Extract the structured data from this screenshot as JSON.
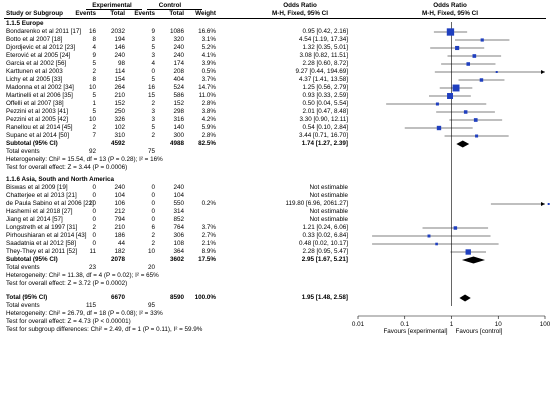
{
  "header": {
    "group_experimental": "Experimental",
    "group_control": "Control",
    "col_study": "Study or Subgroup",
    "col_events_exp": "Events",
    "col_total_exp": "Total",
    "col_events_ctl": "Events",
    "col_total_ctl": "Total",
    "col_weight": "Weight",
    "col_or_title": "Odds Ratio",
    "col_or_method": "M-H, Fixed, 95% CI",
    "plot_title": "Odds Ratio",
    "plot_method": "M-H, Fixed, 95% CI"
  },
  "sections": [
    {
      "title": "1.1.5 Europe",
      "rows": [
        {
          "study": "Bondarenko et al 2011 [17]",
          "e_ev": "16",
          "e_tot": "2032",
          "c_ev": "9",
          "c_tot": "1086",
          "weight": "16.6%",
          "or": "0.95 [0.42, 2.16]"
        },
        {
          "study": "Botto et al 2007 [18]",
          "e_ev": "8",
          "e_tot": "194",
          "c_ev": "3",
          "c_tot": "320",
          "weight": "3.1%",
          "or": "4.54 [1.19, 17.34]"
        },
        {
          "study": "Djordjevic et al 2012 [23]",
          "e_ev": "4",
          "e_tot": "146",
          "c_ev": "5",
          "c_tot": "240",
          "weight": "5.2%",
          "or": "1.32 [0.35, 5.01]"
        },
        {
          "study": "Eterović et al 2005 [24]",
          "e_ev": "9",
          "e_tot": "240",
          "c_ev": "3",
          "c_tot": "240",
          "weight": "4.1%",
          "or": "3.08 [0.82, 11.51]"
        },
        {
          "study": "Garcia et al 2002 [56]",
          "e_ev": "5",
          "e_tot": "98",
          "c_ev": "4",
          "c_tot": "174",
          "weight": "3.9%",
          "or": "2.28 [0.60, 8.72]"
        },
        {
          "study": "Karttunen et al 2003",
          "e_ev": "2",
          "e_tot": "114",
          "c_ev": "0",
          "c_tot": "208",
          "weight": "0.5%",
          "or": "9.27 [0.44, 194.69]"
        },
        {
          "study": "Lichy et al 2005 [33]",
          "e_ev": "8",
          "e_tot": "154",
          "c_ev": "5",
          "c_tot": "404",
          "weight": "3.7%",
          "or": "4.37 [1.41, 13.58]"
        },
        {
          "study": "Madonna et al 2002 [34]",
          "e_ev": "10",
          "e_tot": "264",
          "c_ev": "16",
          "c_tot": "524",
          "weight": "14.7%",
          "or": "1.25 [0.56, 2.79]"
        },
        {
          "study": "Martinelli et al 2006 [35]",
          "e_ev": "5",
          "e_tot": "210",
          "c_ev": "15",
          "c_tot": "586",
          "weight": "11.0%",
          "or": "0.93 [0.33, 2.59]"
        },
        {
          "study": "Offelli et al 2007 [38]",
          "e_ev": "1",
          "e_tot": "152",
          "c_ev": "2",
          "c_tot": "152",
          "weight": "2.8%",
          "or": "0.50 [0.04, 5.54]"
        },
        {
          "study": "Pezzini et al 2003 [41]",
          "e_ev": "5",
          "e_tot": "250",
          "c_ev": "3",
          "c_tot": "298",
          "weight": "3.8%",
          "or": "2.01 [0.47, 8.48]"
        },
        {
          "study": "Pezzini et al 2005 [42]",
          "e_ev": "10",
          "e_tot": "326",
          "c_ev": "3",
          "c_tot": "316",
          "weight": "4.2%",
          "or": "3.30 [0.90, 12.11]"
        },
        {
          "study": "Ranellou et al 2014 [45]",
          "e_ev": "2",
          "e_tot": "102",
          "c_ev": "5",
          "c_tot": "140",
          "weight": "5.9%",
          "or": "0.54 [0.10, 2.84]"
        },
        {
          "study": "Supanc et al 2014 [50]",
          "e_ev": "7",
          "e_tot": "310",
          "c_ev": "2",
          "c_tot": "300",
          "weight": "2.8%",
          "or": "3.44 [0.71, 16.70]"
        }
      ],
      "subtotal": {
        "label": "Subtotal (95% CI)",
        "e_tot": "4592",
        "c_tot": "4988",
        "weight": "82.5%",
        "or": "1.74 [1.27, 2.39]"
      },
      "total_events": {
        "label": "Total events",
        "e": "92",
        "c": "75"
      },
      "heterogeneity": "Heterogeneity: Chi² = 15.54, df = 13 (P = 0.28); I² = 16%",
      "overall": "Test for overall effect: Z = 3.44 (P = 0.0006)"
    },
    {
      "title": "1.1.6 Asia, South and North America",
      "rows": [
        {
          "study": "Biswas et al 2009 [19]",
          "e_ev": "0",
          "e_tot": "240",
          "c_ev": "0",
          "c_tot": "240",
          "weight": "",
          "or": "Not estimable"
        },
        {
          "study": "Chatterjee et al 2013 [21]",
          "e_ev": "0",
          "e_tot": "104",
          "c_ev": "0",
          "c_tot": "104",
          "weight": "",
          "or": "Not estimable"
        },
        {
          "study": "de Paula Sabino et al 2006 [22]",
          "e_ev": "10",
          "e_tot": "106",
          "c_ev": "0",
          "c_tot": "550",
          "weight": "0.2%",
          "or": "119.80 [6.96, 2061.27]"
        },
        {
          "study": "Hashemi et al 2018 [27]",
          "e_ev": "0",
          "e_tot": "212",
          "c_ev": "0",
          "c_tot": "314",
          "weight": "",
          "or": "Not estimable"
        },
        {
          "study": "Jiang et al 2014 [57]",
          "e_ev": "0",
          "e_tot": "794",
          "c_ev": "0",
          "c_tot": "852",
          "weight": "",
          "or": "Not estimable"
        },
        {
          "study": "Longstreth et al 1997 [31]",
          "e_ev": "2",
          "e_tot": "210",
          "c_ev": "6",
          "c_tot": "764",
          "weight": "3.7%",
          "or": "1.21 [0.24, 6.06]"
        },
        {
          "study": "Pirhoushiaran et al 2014 [43]",
          "e_ev": "0",
          "e_tot": "186",
          "c_ev": "2",
          "c_tot": "306",
          "weight": "2.7%",
          "or": "0.33 [0.02, 6.84]"
        },
        {
          "study": "Saadatnia et al 2012 [58]",
          "e_ev": "0",
          "e_tot": "44",
          "c_ev": "2",
          "c_tot": "108",
          "weight": "2.1%",
          "or": "0.48 [0.02, 10.17]"
        },
        {
          "study": "They-They et al 2011 [52]",
          "e_ev": "11",
          "e_tot": "182",
          "c_ev": "10",
          "c_tot": "364",
          "weight": "8.9%",
          "or": "2.28 [0.95, 5.47]"
        }
      ],
      "subtotal": {
        "label": "Subtotal (95% CI)",
        "e_tot": "2078",
        "c_tot": "3602",
        "weight": "17.5%",
        "or": "2.95 [1.67, 5.21]"
      },
      "total_events": {
        "label": "Total events",
        "e": "23",
        "c": "20"
      },
      "heterogeneity": "Heterogeneity: Chi² = 11.38, df = 4 (P = 0.02); I² = 65%",
      "overall": "Test for overall effect: Z = 3.72 (P = 0.0002)"
    }
  ],
  "grand_total": {
    "label": "Total (95% CI)",
    "e_tot": "6670",
    "c_tot": "8590",
    "weight": "100.0%",
    "or": "1.95 [1.48, 2.58]"
  },
  "grand_events": {
    "label": "Total events",
    "e": "115",
    "c": "95"
  },
  "grand_heterogeneity": "Heterogeneity: Chi² = 26.79, df = 18 (P = 0.08); I² = 33%",
  "grand_overall": "Test for overall effect: Z = 4.73 (P < 0.00001)",
  "subgroup_diff": "Test for subgroup differences: Chi² = 2.49, df = 1 (P = 0.11), I² = 59.9%",
  "axis": {
    "ticks": [
      "0.01",
      "0.1",
      "1",
      "10",
      "100"
    ],
    "favours_left": "Favours [experimental]",
    "favours_right": "Favours [control]"
  },
  "colors": {
    "square": "#1f3fbf",
    "line": "#000000",
    "diamond": "#000000"
  },
  "chart_data": {
    "type": "forest",
    "scale": "log",
    "xlim": [
      0.01,
      100
    ],
    "studies": [
      {
        "name": "Bondarenko et al 2011 [17]",
        "or": 0.95,
        "lo": 0.42,
        "hi": 2.16,
        "w": 16.6
      },
      {
        "name": "Botto et al 2007 [18]",
        "or": 4.54,
        "lo": 1.19,
        "hi": 17.34,
        "w": 3.1
      },
      {
        "name": "Djordjevic et al 2012 [23]",
        "or": 1.32,
        "lo": 0.35,
        "hi": 5.01,
        "w": 5.2
      },
      {
        "name": "Eterović et al 2005 [24]",
        "or": 3.08,
        "lo": 0.82,
        "hi": 11.51,
        "w": 4.1
      },
      {
        "name": "Garcia et al 2002 [56]",
        "or": 2.28,
        "lo": 0.6,
        "hi": 8.72,
        "w": 3.9
      },
      {
        "name": "Karttunen et al 2003",
        "or": 9.27,
        "lo": 0.44,
        "hi": 194.69,
        "w": 0.5
      },
      {
        "name": "Lichy et al 2005 [33]",
        "or": 4.37,
        "lo": 1.41,
        "hi": 13.58,
        "w": 3.7
      },
      {
        "name": "Madonna et al 2002 [34]",
        "or": 1.25,
        "lo": 0.56,
        "hi": 2.79,
        "w": 14.7
      },
      {
        "name": "Martinelli et al 2006 [35]",
        "or": 0.93,
        "lo": 0.33,
        "hi": 2.59,
        "w": 11.0
      },
      {
        "name": "Offelli et al 2007 [38]",
        "or": 0.5,
        "lo": 0.04,
        "hi": 5.54,
        "w": 2.8
      },
      {
        "name": "Pezzini et al 2003 [41]",
        "or": 2.01,
        "lo": 0.47,
        "hi": 8.48,
        "w": 3.8
      },
      {
        "name": "Pezzini et al 2005 [42]",
        "or": 3.3,
        "lo": 0.9,
        "hi": 12.11,
        "w": 4.2
      },
      {
        "name": "Ranellou et al 2014 [45]",
        "or": 0.54,
        "lo": 0.1,
        "hi": 2.84,
        "w": 5.9
      },
      {
        "name": "Supanc et al 2014 [50]",
        "or": 3.44,
        "lo": 0.71,
        "hi": 16.7,
        "w": 2.8
      },
      {
        "name": "Subtotal Europe",
        "or": 1.74,
        "lo": 1.27,
        "hi": 2.39,
        "w": 82.5,
        "diamond": true
      },
      {
        "name": "Biswas et al 2009 [19]",
        "or": null
      },
      {
        "name": "Chatterjee et al 2013 [21]",
        "or": null
      },
      {
        "name": "de Paula Sabino et al 2006 [22]",
        "or": 119.8,
        "lo": 6.96,
        "hi": 2061.27,
        "w": 0.2
      },
      {
        "name": "Hashemi et al 2018 [27]",
        "or": null
      },
      {
        "name": "Jiang et al 2014 [57]",
        "or": null
      },
      {
        "name": "Longstreth et al 1997 [31]",
        "or": 1.21,
        "lo": 0.24,
        "hi": 6.06,
        "w": 3.7
      },
      {
        "name": "Pirhoushiaran et al 2014 [43]",
        "or": 0.33,
        "lo": 0.02,
        "hi": 6.84,
        "w": 2.7
      },
      {
        "name": "Saadatnia et al 2012 [58]",
        "or": 0.48,
        "lo": 0.02,
        "hi": 10.17,
        "w": 2.1
      },
      {
        "name": "They-They et al 2011 [52]",
        "or": 2.28,
        "lo": 0.95,
        "hi": 5.47,
        "w": 8.9
      },
      {
        "name": "Subtotal Asia, South and North America",
        "or": 2.95,
        "lo": 1.67,
        "hi": 5.21,
        "w": 17.5,
        "diamond": true
      },
      {
        "name": "Total",
        "or": 1.95,
        "lo": 1.48,
        "hi": 2.58,
        "w": 100.0,
        "diamond": true
      }
    ]
  }
}
